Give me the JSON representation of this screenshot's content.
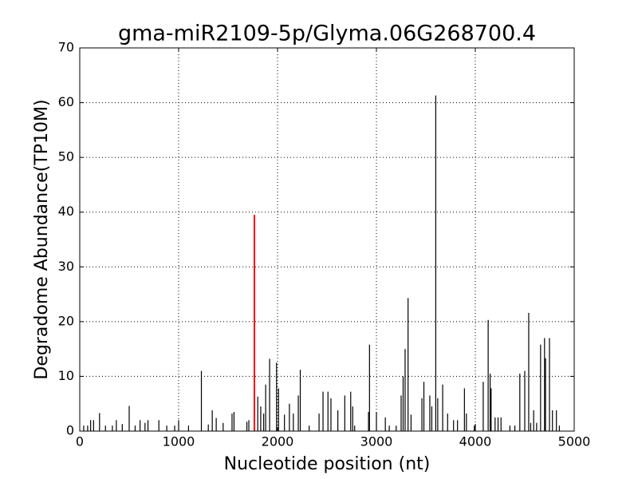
{
  "chart_data": {
    "type": "vlines",
    "title": "gma-miR2109-5p/Glyma.06G268700.4",
    "xlabel": "Nucleotide position (nt)",
    "ylabel": "Degradome Abundance(TP10M)",
    "color": "#000000",
    "x": [
      40,
      80,
      110,
      140,
      200,
      260,
      330,
      370,
      430,
      500,
      560,
      610,
      660,
      690,
      800,
      880,
      960,
      1000,
      1100,
      1230,
      1300,
      1340,
      1380,
      1450,
      1540,
      1560,
      1690,
      1710,
      1800,
      1830,
      1860,
      1880,
      1920,
      1990,
      2010,
      2070,
      2120,
      2160,
      2210,
      2230,
      2320,
      2420,
      2460,
      2510,
      2540,
      2610,
      2680,
      2740,
      2760,
      2780,
      2920,
      2930,
      3000,
      3090,
      3130,
      3200,
      3250,
      3270,
      3290,
      3320,
      3350,
      3460,
      3480,
      3540,
      3560,
      3600,
      3620,
      3670,
      3720,
      3780,
      3820,
      3890,
      3910,
      3990,
      4000,
      4080,
      4130,
      4150,
      4160,
      4200,
      4230,
      4260,
      4350,
      4400,
      4450,
      4500,
      4540,
      4560,
      4590,
      4620,
      4660,
      4700,
      4710,
      4750,
      4780,
      4820,
      4850
    ],
    "values": [
      1,
      1,
      2,
      2,
      3.3,
      1,
      1,
      2,
      1.3,
      4.6,
      1,
      2,
      1.5,
      2,
      2,
      1,
      1,
      2,
      1,
      11,
      1.2,
      3.8,
      2.4,
      1.5,
      3.2,
      3.5,
      1.7,
      2,
      6.3,
      4.5,
      3.2,
      8.5,
      13.2,
      12.5,
      7.8,
      3,
      5,
      3.2,
      6.5,
      11.2,
      1,
      3.2,
      7.2,
      7.2,
      6,
      3.8,
      6.5,
      7.2,
      4.5,
      1,
      3.5,
      15.8,
      3.5,
      2.5,
      1,
      1,
      6.5,
      10,
      15,
      24.3,
      3,
      6,
      9,
      6.5,
      4.5,
      61.3,
      6,
      8.5,
      3.2,
      2,
      2,
      7.8,
      3.2,
      1,
      1.3,
      9,
      20.3,
      10.5,
      7.8,
      2.5,
      2.5,
      2.5,
      1,
      1,
      10.5,
      11,
      21.6,
      1.5,
      3.8,
      1.5,
      15.8,
      17,
      13.3,
      17,
      3.8,
      3.8,
      1
    ],
    "target": {
      "x": 1766,
      "value": 39.5,
      "color": "#ff0000"
    },
    "xlim": [
      0,
      5000
    ],
    "xticks": [
      0,
      1000,
      2000,
      3000,
      4000,
      5000
    ],
    "ylim": [
      0,
      70
    ],
    "yticks": [
      0,
      10,
      20,
      30,
      40,
      50,
      60,
      70
    ],
    "grid": true
  }
}
